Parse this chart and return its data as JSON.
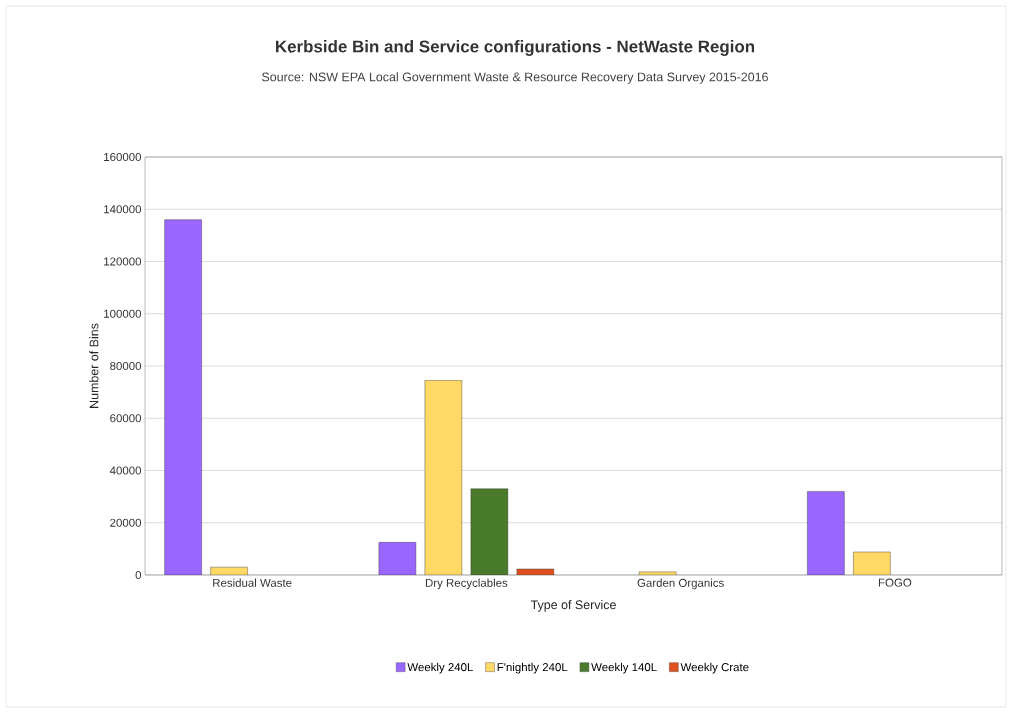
{
  "chart_data": {
    "type": "bar",
    "title": "Kerbside Bin and Service configurations  - NetWaste Region",
    "subtitle": "Source: NSW EPA Local Government Waste & Resource Recovery Data Survey 2015-2016",
    "xlabel": "Type of Service",
    "ylabel": "Number of Bins",
    "categories": [
      "Residual Waste",
      "Dry Recyclables",
      "Garden Organics",
      "FOGO"
    ],
    "series": [
      {
        "name": "Weekly 240L",
        "color": "#9966ff",
        "values": [
          136000,
          12500,
          null,
          32000
        ]
      },
      {
        "name": "F'nightly 240L",
        "color": "#ffd966",
        "values": [
          3000,
          74500,
          1200,
          8800
        ]
      },
      {
        "name": "Weekly 140L",
        "color": "#4a7a2b",
        "values": [
          null,
          33000,
          null,
          null
        ]
      },
      {
        "name": "Weekly Crate",
        "color": "#e0501e",
        "values": [
          null,
          2300,
          null,
          null
        ]
      }
    ],
    "ylim": [
      0,
      160000
    ],
    "yticks": [
      0,
      20000,
      40000,
      60000,
      80000,
      100000,
      120000,
      140000,
      160000
    ],
    "grid": "y",
    "legend": "bottom"
  }
}
